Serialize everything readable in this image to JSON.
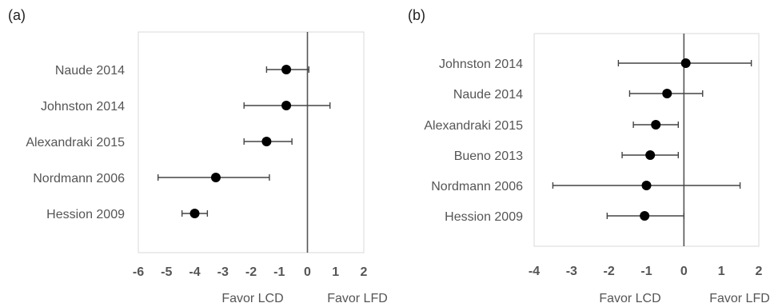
{
  "chart_data": [
    {
      "type": "forest",
      "panel_label": "(a)",
      "xlim": [
        -6,
        2
      ],
      "x_ticks": [
        "-6",
        "-5",
        "-4",
        "-3",
        "-2",
        "-1",
        "0",
        "1",
        "2"
      ],
      "reference_line": 0,
      "favor_labels": [
        "Favor LCD",
        "Favor LFD"
      ],
      "colors": {
        "marker": "#000000",
        "whisker": "#444444",
        "zero_line": "#555555",
        "frame": "#d9d9d9"
      },
      "studies": [
        {
          "label": "Naude 2014",
          "estimate": -0.75,
          "ci_low": -1.45,
          "ci_high": 0.05
        },
        {
          "label": "Johnston 2014",
          "estimate": -0.75,
          "ci_low": -2.25,
          "ci_high": 0.8
        },
        {
          "label": "Alexandraki 2015",
          "estimate": -1.45,
          "ci_low": -2.25,
          "ci_high": -0.55
        },
        {
          "label": "Nordmann 2006",
          "estimate": -3.25,
          "ci_low": -5.3,
          "ci_high": -1.35
        },
        {
          "label": "Hession 2009",
          "estimate": -4.0,
          "ci_low": -4.45,
          "ci_high": -3.55
        }
      ]
    },
    {
      "type": "forest",
      "panel_label": "(b)",
      "xlim": [
        -4,
        2
      ],
      "x_ticks": [
        "-4",
        "-3",
        "-2",
        "-1",
        "0",
        "1",
        "2"
      ],
      "reference_line": 0,
      "favor_labels": [
        "Favor LCD",
        "Favor LFD"
      ],
      "colors": {
        "marker": "#000000",
        "whisker": "#444444",
        "zero_line": "#555555",
        "frame": "#d9d9d9"
      },
      "studies": [
        {
          "label": "Johnston 2014",
          "estimate": 0.05,
          "ci_low": -1.75,
          "ci_high": 1.8
        },
        {
          "label": "Naude 2014",
          "estimate": -0.45,
          "ci_low": -1.45,
          "ci_high": 0.5
        },
        {
          "label": "Alexandraki 2015",
          "estimate": -0.75,
          "ci_low": -1.35,
          "ci_high": -0.15
        },
        {
          "label": "Bueno 2013",
          "estimate": -0.9,
          "ci_low": -1.65,
          "ci_high": -0.15
        },
        {
          "label": "Nordmann 2006",
          "estimate": -1.0,
          "ci_low": -3.5,
          "ci_high": 1.5
        },
        {
          "label": "Hession 2009",
          "estimate": -1.05,
          "ci_low": -2.05,
          "ci_high": 0.0
        }
      ]
    }
  ]
}
